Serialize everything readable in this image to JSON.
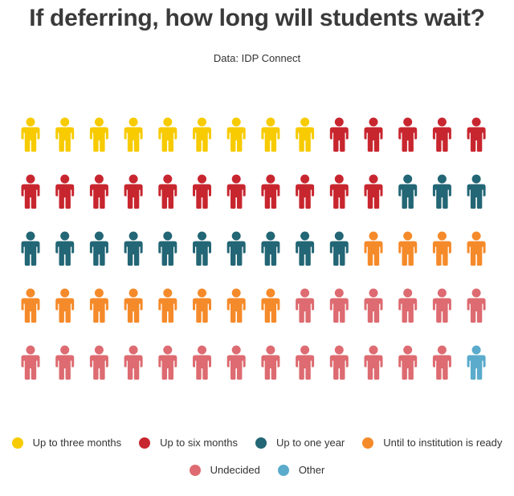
{
  "chart_data": {
    "type": "pictogram",
    "title": "If deferring, how long will students wait?",
    "subtitle": "Data: IDP Connect",
    "icon": "person-icon",
    "columns": 14,
    "rows": 5,
    "series": [
      {
        "name": "Up to three months",
        "count": 9,
        "color": "#f7cb00"
      },
      {
        "name": "Up to six months",
        "count": 16,
        "color": "#c8262f"
      },
      {
        "name": "Up to one year",
        "count": 13,
        "color": "#236675"
      },
      {
        "name": "Until to institution is ready",
        "count": 12,
        "color": "#f58a2a"
      },
      {
        "name": "Undecided",
        "count": 19,
        "color": "#dd6b71"
      },
      {
        "name": "Other",
        "count": 1,
        "color": "#5aabcc"
      }
    ]
  }
}
